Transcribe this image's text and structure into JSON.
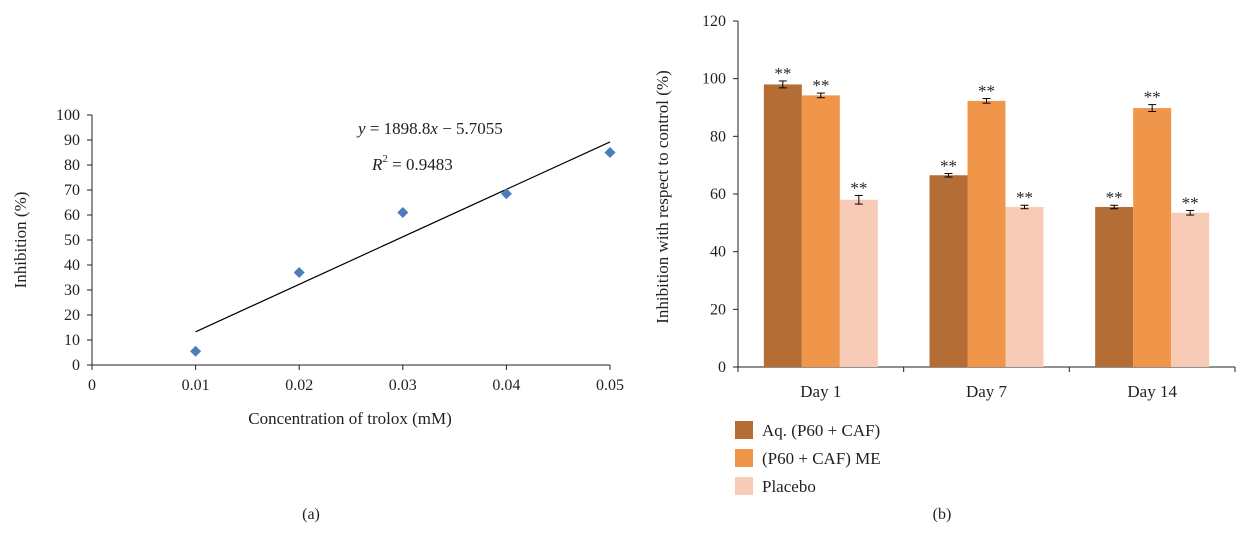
{
  "panels": {
    "a": {
      "label": "(a)"
    },
    "b": {
      "label": "(b)"
    }
  },
  "colors": {
    "scatter_marker": "#4a7ebb",
    "aq": "#b36d35",
    "me": "#f0964a",
    "placebo": "#f7cbb5",
    "axis": "#231f20"
  },
  "chart_data": [
    {
      "type": "scatter",
      "xlabel": "Concentration of trolox (mM)",
      "ylabel": "Inhibition (%)",
      "xlim": [
        0,
        0.05
      ],
      "ylim": [
        0,
        100
      ],
      "xticks": [
        0,
        0.01,
        0.02,
        0.03,
        0.04,
        0.05
      ],
      "xtick_labels": [
        "0",
        "0.01",
        "0.02",
        "0.03",
        "0.04",
        "0.05"
      ],
      "yticks": [
        0,
        10,
        20,
        30,
        40,
        50,
        60,
        70,
        80,
        90,
        100
      ],
      "ytick_labels": [
        "0",
        "10",
        "20",
        "30",
        "40",
        "50",
        "60",
        "70",
        "80",
        "90",
        "100"
      ],
      "points": [
        {
          "x": 0.01,
          "y": 5.5
        },
        {
          "x": 0.02,
          "y": 37
        },
        {
          "x": 0.03,
          "y": 61
        },
        {
          "x": 0.04,
          "y": 68.5
        },
        {
          "x": 0.05,
          "y": 85
        }
      ],
      "trendline": {
        "slope": 1898.8,
        "intercept": -5.7055,
        "x_range": [
          0.01,
          0.05
        ]
      },
      "annotations": {
        "equation_y": "y",
        "equation_rest": " = 1898.8",
        "equation_x": "x",
        "equation_tail": " − 5.7055",
        "r2_R": "R",
        "r2_sup": "2",
        "r2_rest": " = 0.9483"
      },
      "grid": false,
      "legend": "none"
    },
    {
      "type": "bar",
      "ylabel": "Inhibition with respect to control (%)",
      "xlabel": "",
      "categories": [
        "Day 1",
        "Day 7",
        "Day 14"
      ],
      "ylim": [
        0,
        120
      ],
      "yticks": [
        0,
        20,
        40,
        60,
        80,
        100,
        120
      ],
      "ytick_labels": [
        "0",
        "20",
        "40",
        "60",
        "80",
        "100",
        "120"
      ],
      "series": [
        {
          "name": "Aq. (P60 + CAF)",
          "values": [
            98,
            66.5,
            55.5
          ],
          "errors": [
            1.2,
            0.6,
            0.6
          ],
          "sig": [
            "**",
            "**",
            "**"
          ]
        },
        {
          "name": "(P60 + CAF) ME",
          "values": [
            94.2,
            92.3,
            89.8
          ],
          "errors": [
            0.8,
            0.8,
            1.2
          ],
          "sig": [
            "**",
            "**",
            "**"
          ]
        },
        {
          "name": "Placebo",
          "values": [
            58,
            55.5,
            53.5
          ],
          "errors": [
            1.5,
            0.6,
            0.8
          ],
          "sig": [
            "**",
            "**",
            "**"
          ]
        }
      ],
      "grid": false,
      "legend": "bottom-left"
    }
  ]
}
